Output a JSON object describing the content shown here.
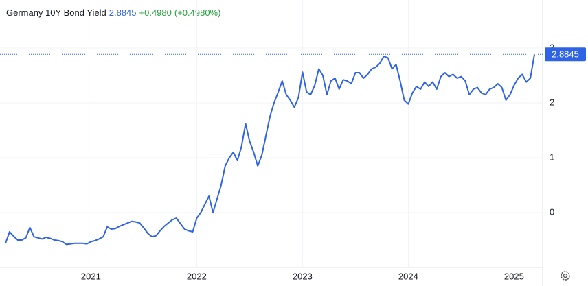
{
  "chart_data": {
    "type": "line",
    "title": "Germany 10Y Bond Yield",
    "change_label": "+0.4980",
    "change_pct_label": "(+0.4980%)",
    "categories": [
      null,
      null,
      null,
      null,
      null,
      null,
      null,
      null,
      null,
      null,
      null,
      null,
      null,
      null,
      null,
      null,
      null,
      null,
      null,
      null,
      null,
      "2021",
      null,
      null,
      null,
      null,
      null,
      null,
      null,
      null,
      null,
      null,
      null,
      null,
      null,
      null,
      null,
      null,
      null,
      null,
      null,
      null,
      null,
      null,
      null,
      null,
      null,
      "2022",
      null,
      null,
      null,
      null,
      null,
      null,
      null,
      null,
      null,
      null,
      null,
      null,
      null,
      null,
      null,
      null,
      null,
      null,
      null,
      null,
      null,
      null,
      null,
      null,
      null,
      "2023",
      null,
      null,
      null,
      null,
      null,
      null,
      null,
      null,
      null,
      null,
      null,
      null,
      null,
      null,
      null,
      null,
      null,
      null,
      null,
      null,
      null,
      null,
      null,
      null,
      null,
      "2024",
      null,
      null,
      null,
      null,
      null,
      null,
      null,
      null,
      null,
      null,
      null,
      null,
      null,
      null,
      null,
      null,
      null,
      null,
      null,
      null,
      null,
      null,
      null,
      null,
      null,
      "2025",
      null,
      null,
      null,
      null,
      null
    ],
    "series": [
      {
        "name": "Germany 10Y Bond Yield",
        "color": "#2f63e6",
        "values": [
          -0.56,
          -0.35,
          -0.43,
          -0.5,
          -0.5,
          -0.46,
          -0.27,
          -0.44,
          -0.46,
          -0.48,
          -0.45,
          -0.47,
          -0.5,
          -0.51,
          -0.53,
          -0.58,
          -0.57,
          -0.56,
          -0.56,
          -0.56,
          -0.57,
          -0.53,
          -0.51,
          -0.48,
          -0.44,
          -0.26,
          -0.3,
          -0.29,
          -0.25,
          -0.22,
          -0.19,
          -0.16,
          -0.17,
          -0.19,
          -0.28,
          -0.38,
          -0.44,
          -0.42,
          -0.33,
          -0.25,
          -0.19,
          -0.13,
          -0.1,
          -0.2,
          -0.3,
          -0.33,
          -0.35,
          -0.1,
          0,
          0.15,
          0.3,
          0,
          0.25,
          0.5,
          0.85,
          1,
          1.1,
          0.95,
          1.2,
          1.62,
          1.3,
          1.1,
          0.85,
          1.05,
          1.4,
          1.75,
          2,
          2.19,
          2.4,
          2.15,
          2.05,
          1.92,
          2.1,
          2.56,
          2.2,
          2.15,
          2.32,
          2.62,
          2.5,
          2.15,
          2.4,
          2.45,
          2.25,
          2.42,
          2.4,
          2.35,
          2.55,
          2.55,
          2.45,
          2.52,
          2.62,
          2.65,
          2.72,
          2.85,
          2.82,
          2.62,
          2.7,
          2.4,
          2.05,
          1.98,
          2.18,
          2.3,
          2.25,
          2.38,
          2.3,
          2.38,
          2.25,
          2.48,
          2.55,
          2.48,
          2.52,
          2.45,
          2.48,
          2.4,
          2.15,
          2.25,
          2.28,
          2.18,
          2.15,
          2.25,
          2.28,
          2.35,
          2.28,
          2.05,
          2.15,
          2.32,
          2.45,
          2.52,
          2.38,
          2.45,
          2.8845
        ]
      }
    ],
    "ylim": [
      -1,
      3.85
    ],
    "yticks": [
      0,
      1,
      2,
      3
    ],
    "grid": true
  }
}
